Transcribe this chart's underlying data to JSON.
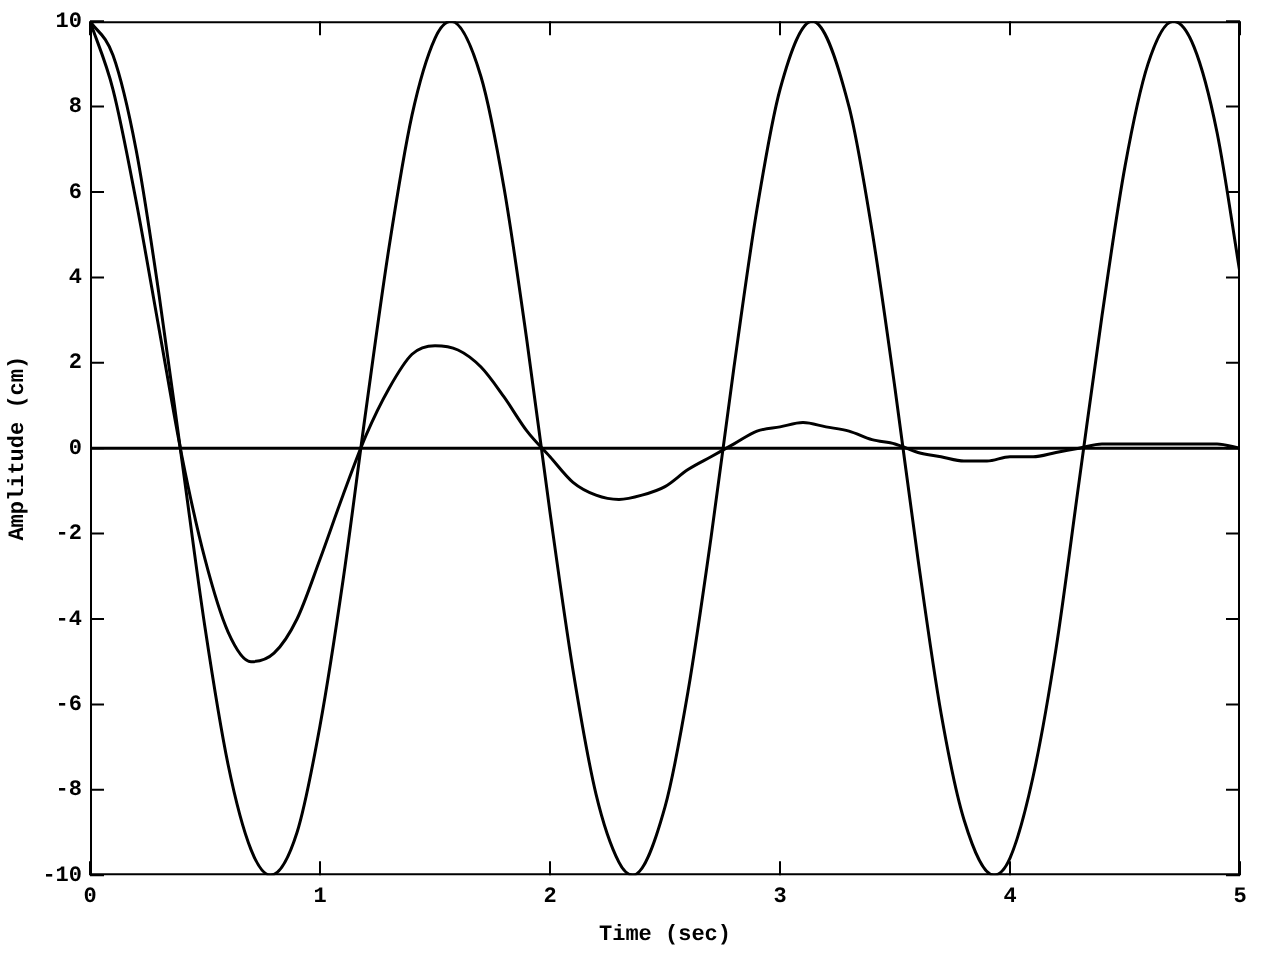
{
  "chart_data": {
    "type": "line",
    "xlabel": "Time (sec)",
    "ylabel": "Amplitude (cm)",
    "xlim": [
      0,
      5
    ],
    "xticks": [
      0,
      1,
      2,
      3,
      4,
      5
    ],
    "ylim": [
      -10,
      10
    ],
    "yticks": [
      -10,
      -8,
      -6,
      -4,
      -2,
      0,
      2,
      4,
      6,
      8,
      10
    ],
    "grid": false,
    "legend": false,
    "marker": "none",
    "line_style": "solid",
    "ref_lines": [
      {
        "axis": "y",
        "value": 0,
        "color": "#000000"
      }
    ],
    "series": [
      {
        "color": "#000000",
        "x": [
          0,
          0.1,
          0.2,
          0.3,
          0.4,
          0.5,
          0.6,
          0.7,
          0.785,
          0.9,
          1.0,
          1.1,
          1.2,
          1.3,
          1.4,
          1.5,
          1.57,
          1.7,
          1.8,
          1.9,
          2.0,
          2.1,
          2.2,
          2.3,
          2.36,
          2.5,
          2.6,
          2.7,
          2.8,
          2.9,
          3.0,
          3.14,
          3.3,
          3.4,
          3.5,
          3.6,
          3.7,
          3.8,
          3.93,
          4.0,
          4.1,
          4.2,
          4.3,
          4.4,
          4.5,
          4.6,
          4.71,
          4.8,
          4.9,
          5.0
        ],
        "values": [
          10,
          9.2,
          7.0,
          3.6,
          -0.3,
          -4.2,
          -7.4,
          -9.4,
          -10,
          -9.0,
          -6.5,
          -3.1,
          0.9,
          4.7,
          7.8,
          9.6,
          10,
          8.7,
          6.1,
          2.5,
          -1.5,
          -5.2,
          -8.1,
          -9.7,
          -10,
          -8.4,
          -5.7,
          -2.1,
          1.9,
          5.6,
          8.4,
          10,
          8.0,
          5.1,
          1.4,
          -2.6,
          -6.2,
          -8.7,
          -10,
          -9.6,
          -7.7,
          -4.7,
          -0.8,
          3.1,
          6.6,
          9.0,
          10,
          9.4,
          7.4,
          4.1
        ]
      },
      {
        "color": "#000000",
        "x": [
          0,
          0.1,
          0.2,
          0.3,
          0.4,
          0.5,
          0.6,
          0.7,
          0.8,
          0.9,
          1.0,
          1.1,
          1.2,
          1.3,
          1.4,
          1.5,
          1.6,
          1.7,
          1.8,
          1.9,
          2.0,
          2.1,
          2.2,
          2.3,
          2.4,
          2.5,
          2.6,
          2.7,
          2.8,
          2.9,
          3.0,
          3.1,
          3.2,
          3.3,
          3.4,
          3.5,
          3.6,
          3.7,
          3.8,
          3.9,
          4.0,
          4.1,
          4.2,
          4.3,
          4.4,
          4.5,
          4.6,
          4.7,
          4.8,
          4.9,
          5.0
        ],
        "values": [
          10,
          8.4,
          5.8,
          2.8,
          -0.2,
          -2.6,
          -4.3,
          -5.0,
          -4.8,
          -4.0,
          -2.6,
          -1.1,
          0.3,
          1.4,
          2.2,
          2.4,
          2.3,
          1.9,
          1.2,
          0.4,
          -0.2,
          -0.8,
          -1.1,
          -1.2,
          -1.1,
          -0.9,
          -0.5,
          -0.2,
          0.1,
          0.4,
          0.5,
          0.6,
          0.5,
          0.4,
          0.2,
          0.1,
          -0.1,
          -0.2,
          -0.3,
          -0.3,
          -0.2,
          -0.2,
          -0.1,
          0,
          0.1,
          0.1,
          0.1,
          0.1,
          0.1,
          0.1,
          0
        ]
      }
    ]
  }
}
